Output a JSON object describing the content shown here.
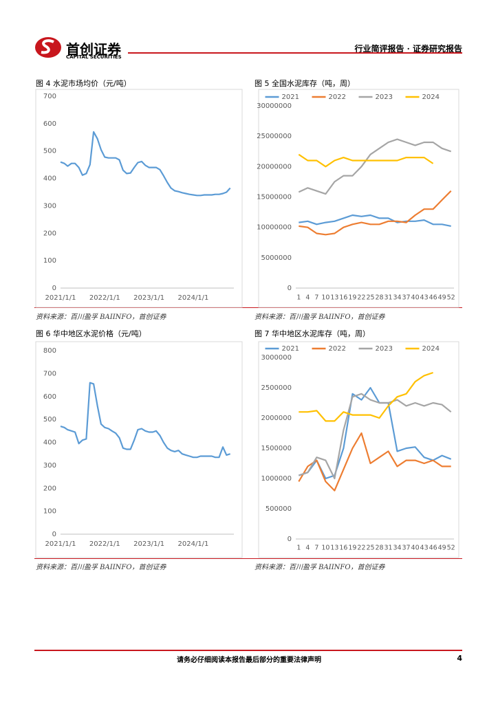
{
  "header": {
    "brand": "首创证券",
    "brand_en": "CAPITAL SECURITIES",
    "report_type": "行业简评报告 · 证券研究报告"
  },
  "footer": {
    "disclaimer": "请务必仔细阅读本报告最后部分的重要法律声明",
    "page": "4"
  },
  "chart_data": [
    {
      "type": "line",
      "title": "图 4 水泥市场均价（元/吨）",
      "source": "资料来源：百川盈孚 BAIINFO，首创证券",
      "color": "#5b9bd5",
      "grid": false,
      "x": [
        "2021/1/1",
        "2021/2/1",
        "2021/3/1",
        "2021/4/1",
        "2021/5/1",
        "2021/6/1",
        "2021/7/1",
        "2021/8/1",
        "2021/9/1",
        "2021/10/1",
        "2021/11/1",
        "2021/12/1",
        "2022/1/1",
        "2022/2/1",
        "2022/3/1",
        "2022/4/1",
        "2022/5/1",
        "2022/6/1",
        "2022/7/1",
        "2022/8/1",
        "2022/9/1",
        "2022/10/1",
        "2022/11/1",
        "2022/12/1",
        "2023/1/1",
        "2023/2/1",
        "2023/3/1",
        "2023/4/1",
        "2023/5/1",
        "2023/6/1",
        "2023/7/1",
        "2023/8/1",
        "2023/9/1",
        "2023/10/1",
        "2023/11/1",
        "2023/12/1",
        "2024/1/1",
        "2024/2/1",
        "2024/3/1",
        "2024/4/1",
        "2024/5/1",
        "2024/6/1",
        "2024/7/1",
        "2024/8/1",
        "2024/9/1",
        "2024/10/1",
        "2024/11/1"
      ],
      "values": [
        460,
        455,
        445,
        455,
        455,
        440,
        412,
        418,
        450,
        570,
        545,
        505,
        478,
        475,
        475,
        475,
        468,
        430,
        418,
        420,
        440,
        458,
        462,
        448,
        440,
        440,
        440,
        432,
        410,
        385,
        365,
        355,
        352,
        348,
        345,
        342,
        340,
        338,
        338,
        340,
        340,
        340,
        342,
        342,
        345,
        350,
        365
      ],
      "xlim": [
        "2021/1/1",
        "2024/12/1"
      ],
      "xticks": [
        "2021/1/1",
        "2022/1/1",
        "2023/1/1",
        "2024/1/1"
      ],
      "ylim": [
        0,
        700
      ],
      "yticks": [
        0,
        100,
        200,
        300,
        400,
        500,
        600,
        700
      ]
    },
    {
      "type": "line",
      "title": "图 5 全国水泥库存（吨，周）",
      "source": "资料来源：百川盈孚 BAIINFO，首创证券",
      "grid": false,
      "legend": "top",
      "x": [
        1,
        4,
        7,
        10,
        13,
        16,
        19,
        22,
        25,
        28,
        31,
        34,
        37,
        40,
        43,
        46,
        49,
        52
      ],
      "series": [
        {
          "name": "2021",
          "color": "#5b9bd5",
          "values": [
            10800000,
            11000000,
            10500000,
            10800000,
            11000000,
            11500000,
            12000000,
            11800000,
            12000000,
            11500000,
            11500000,
            10800000,
            11000000,
            11000000,
            11200000,
            10500000,
            10500000,
            10200000
          ]
        },
        {
          "name": "2022",
          "color": "#ed7d31",
          "values": [
            10200000,
            10000000,
            9000000,
            8800000,
            9000000,
            10000000,
            10500000,
            10800000,
            10500000,
            10500000,
            11000000,
            11000000,
            10800000,
            12000000,
            13000000,
            13000000,
            14500000,
            16000000
          ]
        },
        {
          "name": "2023",
          "color": "#a5a5a5",
          "values": [
            15800000,
            16500000,
            16000000,
            15500000,
            17500000,
            18500000,
            18500000,
            20000000,
            22000000,
            23000000,
            24000000,
            24500000,
            24000000,
            23500000,
            24000000,
            24000000,
            23000000,
            22500000
          ]
        },
        {
          "name": "2024",
          "color": "#ffc000",
          "values": [
            22000000,
            21000000,
            21000000,
            20000000,
            21000000,
            21500000,
            21000000,
            21000000,
            21000000,
            21000000,
            21000000,
            21000000,
            21500000,
            21500000,
            21500000,
            20500000,
            null,
            null
          ]
        }
      ],
      "xlim": [
        0,
        53
      ],
      "xticks": [
        1,
        4,
        7,
        10,
        13,
        16,
        19,
        22,
        25,
        28,
        31,
        34,
        37,
        40,
        43,
        46,
        49,
        52
      ],
      "ylim": [
        0,
        30000000
      ],
      "yticks": [
        0,
        5000000,
        10000000,
        15000000,
        20000000,
        25000000,
        30000000
      ]
    },
    {
      "type": "line",
      "title": "图 6 华中地区水泥价格（元/吨）",
      "source": "资料来源：百川盈孚 BAIINFO，首创证券",
      "color": "#5b9bd5",
      "grid": false,
      "x": [
        "2021/1/1",
        "2021/2/1",
        "2021/3/1",
        "2021/4/1",
        "2021/5/1",
        "2021/6/1",
        "2021/7/1",
        "2021/8/1",
        "2021/9/1",
        "2021/10/1",
        "2021/11/1",
        "2021/12/1",
        "2022/1/1",
        "2022/2/1",
        "2022/3/1",
        "2022/4/1",
        "2022/5/1",
        "2022/6/1",
        "2022/7/1",
        "2022/8/1",
        "2022/9/1",
        "2022/10/1",
        "2022/11/1",
        "2022/12/1",
        "2023/1/1",
        "2023/2/1",
        "2023/3/1",
        "2023/4/1",
        "2023/5/1",
        "2023/6/1",
        "2023/7/1",
        "2023/8/1",
        "2023/9/1",
        "2023/10/1",
        "2023/11/1",
        "2023/12/1",
        "2024/1/1",
        "2024/2/1",
        "2024/3/1",
        "2024/4/1",
        "2024/5/1",
        "2024/6/1",
        "2024/7/1",
        "2024/8/1",
        "2024/9/1",
        "2024/10/1",
        "2024/11/1"
      ],
      "values": [
        470,
        465,
        455,
        450,
        445,
        395,
        410,
        415,
        660,
        655,
        560,
        480,
        465,
        460,
        450,
        440,
        420,
        375,
        370,
        370,
        410,
        455,
        460,
        450,
        445,
        445,
        450,
        430,
        400,
        375,
        365,
        360,
        365,
        350,
        345,
        340,
        335,
        335,
        340,
        340,
        340,
        340,
        335,
        335,
        380,
        345,
        350
      ],
      "xlim": [
        "2021/1/1",
        "2024/12/1"
      ],
      "xticks": [
        "2021/1/1",
        "2022/1/1",
        "2023/1/1",
        "2024/1/1"
      ],
      "ylim": [
        0,
        800
      ],
      "yticks": [
        0,
        100,
        200,
        300,
        400,
        500,
        600,
        700,
        800
      ]
    },
    {
      "type": "line",
      "title": "图 7 华中地区水泥库存（吨，周）",
      "source": "资料来源：百川盈孚 BAIINFO，首创证券",
      "grid": false,
      "legend": "top",
      "x": [
        1,
        4,
        7,
        10,
        13,
        16,
        19,
        22,
        25,
        28,
        31,
        34,
        37,
        40,
        43,
        46,
        49,
        52
      ],
      "series": [
        {
          "name": "2021",
          "color": "#5b9bd5",
          "values": [
            1050000,
            1100000,
            1300000,
            1000000,
            1050000,
            1500000,
            2400000,
            2300000,
            2500000,
            2250000,
            2250000,
            1450000,
            1500000,
            1520000,
            1350000,
            1300000,
            1380000,
            1320000
          ]
        },
        {
          "name": "2022",
          "color": "#ed7d31",
          "values": [
            950000,
            1200000,
            1300000,
            950000,
            800000,
            1150000,
            1500000,
            1750000,
            1250000,
            1350000,
            1450000,
            1200000,
            1300000,
            1300000,
            1250000,
            1300000,
            1200000,
            1200000
          ]
        },
        {
          "name": "2023",
          "color": "#a5a5a5",
          "values": [
            1050000,
            1100000,
            1350000,
            1300000,
            1000000,
            1800000,
            2350000,
            2400000,
            2300000,
            2250000,
            2250000,
            2300000,
            2200000,
            2250000,
            2200000,
            2250000,
            2220000,
            2100000
          ]
        },
        {
          "name": "2024",
          "color": "#ffc000",
          "values": [
            2100000,
            2100000,
            2120000,
            1950000,
            1950000,
            2100000,
            2050000,
            2050000,
            2050000,
            2000000,
            2200000,
            2350000,
            2400000,
            2600000,
            2700000,
            2750000,
            null,
            null
          ]
        }
      ],
      "xlim": [
        0,
        53
      ],
      "xticks": [
        1,
        4,
        7,
        10,
        13,
        16,
        19,
        22,
        25,
        28,
        31,
        34,
        37,
        40,
        43,
        46,
        49,
        52
      ],
      "ylim": [
        0,
        3000000
      ],
      "yticks": [
        0,
        500000,
        1000000,
        1500000,
        2000000,
        2500000,
        3000000
      ]
    }
  ]
}
